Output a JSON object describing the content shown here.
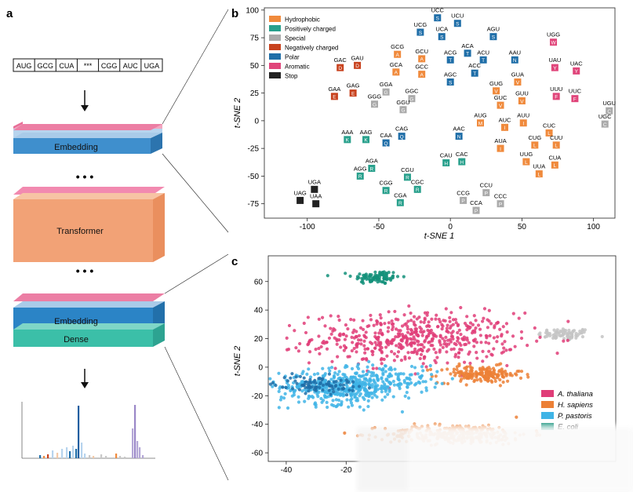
{
  "panel_labels": {
    "a": "a",
    "b": "b",
    "c": "c"
  },
  "architecture": {
    "sequence_tokens": [
      "AUG",
      "GCG",
      "CUA",
      "***",
      "CGG",
      "AUC",
      "UGA"
    ],
    "top_embedding_label": "Embedding",
    "dots": "• • •",
    "transformer_label": "Transformer",
    "bottom_embedding_label": "Embedding",
    "dense_label": "Dense"
  },
  "colors": {
    "Hydrophobic": "#f08a3c",
    "Positively charged": "#28a08c",
    "Special": "#aaaaaa",
    "Negatively charged": "#c8421e",
    "Polar": "#1f6ea8",
    "Aromatic": "#e0457a",
    "Stop": "#222222",
    "A. thaliana": "#e03d78",
    "H. sapiens": "#ec8036",
    "P. pastoris": "#3fb4e6",
    "E. coli": "#13907a"
  },
  "chart_data": [
    {
      "id": "b",
      "type": "scatter",
      "title": "",
      "xlabel": "t-SNE 1",
      "ylabel": "t-SNE 2",
      "xlim": [
        -130,
        115
      ],
      "ylim": [
        -88,
        102
      ],
      "xticks": [
        -100,
        -50,
        0,
        50,
        100
      ],
      "yticks": [
        -75,
        -50,
        -25,
        0,
        25,
        50,
        75,
        100
      ],
      "legend": [
        "Hydrophobic",
        "Positively charged",
        "Special",
        "Negatively charged",
        "Polar",
        "Aromatic",
        "Stop"
      ],
      "legend_position": "top-left",
      "points": [
        {
          "codon": "UCC",
          "aa": "S",
          "x": -9,
          "y": 93,
          "cls": "Polar"
        },
        {
          "codon": "UCU",
          "aa": "S",
          "x": 5,
          "y": 88,
          "cls": "Polar"
        },
        {
          "codon": "UCG",
          "aa": "S",
          "x": -21,
          "y": 80,
          "cls": "Polar"
        },
        {
          "codon": "UCA",
          "aa": "S",
          "x": -6,
          "y": 76,
          "cls": "Polar"
        },
        {
          "codon": "AGU",
          "aa": "S",
          "x": 30,
          "y": 76,
          "cls": "Polar"
        },
        {
          "codon": "UGG",
          "aa": "W",
          "x": 72,
          "y": 71,
          "cls": "Aromatic"
        },
        {
          "codon": "GCG",
          "aa": "A",
          "x": -37,
          "y": 60,
          "cls": "Hydrophobic"
        },
        {
          "codon": "GCU",
          "aa": "A",
          "x": -20,
          "y": 56,
          "cls": "Hydrophobic"
        },
        {
          "codon": "ACA",
          "aa": "T",
          "x": 12,
          "y": 61,
          "cls": "Polar"
        },
        {
          "codon": "ACG",
          "aa": "T",
          "x": 0,
          "y": 55,
          "cls": "Polar"
        },
        {
          "codon": "ACU",
          "aa": "T",
          "x": 23,
          "y": 55,
          "cls": "Polar"
        },
        {
          "codon": "AAU",
          "aa": "N",
          "x": 45,
          "y": 55,
          "cls": "Polar"
        },
        {
          "codon": "UAU",
          "aa": "Y",
          "x": 73,
          "y": 48,
          "cls": "Aromatic"
        },
        {
          "codon": "UAC",
          "aa": "Y",
          "x": 88,
          "y": 45,
          "cls": "Aromatic"
        },
        {
          "codon": "GAC",
          "aa": "D",
          "x": -77,
          "y": 48,
          "cls": "Negatively charged"
        },
        {
          "codon": "GAU",
          "aa": "D",
          "x": -65,
          "y": 50,
          "cls": "Negatively charged"
        },
        {
          "codon": "GCA",
          "aa": "A",
          "x": -38,
          "y": 44,
          "cls": "Hydrophobic"
        },
        {
          "codon": "GCC",
          "aa": "A",
          "x": -20,
          "y": 42,
          "cls": "Hydrophobic"
        },
        {
          "codon": "ACC",
          "aa": "T",
          "x": 17,
          "y": 43,
          "cls": "Polar"
        },
        {
          "codon": "AGC",
          "aa": "S",
          "x": 0,
          "y": 35,
          "cls": "Polar"
        },
        {
          "codon": "GUA",
          "aa": "V",
          "x": 47,
          "y": 35,
          "cls": "Hydrophobic"
        },
        {
          "codon": "GUG",
          "aa": "V",
          "x": 32,
          "y": 27,
          "cls": "Hydrophobic"
        },
        {
          "codon": "UUU",
          "aa": "F",
          "x": 74,
          "y": 22,
          "cls": "Aromatic"
        },
        {
          "codon": "UUC",
          "aa": "F",
          "x": 87,
          "y": 20,
          "cls": "Aromatic"
        },
        {
          "codon": "GAG",
          "aa": "E",
          "x": -68,
          "y": 25,
          "cls": "Negatively charged"
        },
        {
          "codon": "GAA",
          "aa": "E",
          "x": -81,
          "y": 22,
          "cls": "Negatively charged"
        },
        {
          "codon": "GGA",
          "aa": "G",
          "x": -45,
          "y": 26,
          "cls": "Special"
        },
        {
          "codon": "GGC",
          "aa": "G",
          "x": -27,
          "y": 20,
          "cls": "Special"
        },
        {
          "codon": "GGG",
          "aa": "G",
          "x": -53,
          "y": 15,
          "cls": "Special"
        },
        {
          "codon": "GGU",
          "aa": "G",
          "x": -33,
          "y": 10,
          "cls": "Special"
        },
        {
          "codon": "GUU",
          "aa": "V",
          "x": 50,
          "y": 18,
          "cls": "Hydrophobic"
        },
        {
          "codon": "GUC",
          "aa": "V",
          "x": 35,
          "y": 14,
          "cls": "Hydrophobic"
        },
        {
          "codon": "UGU",
          "aa": "C",
          "x": 111,
          "y": 9,
          "cls": "Special"
        },
        {
          "codon": "UGC",
          "aa": "C",
          "x": 108,
          "y": -3,
          "cls": "Special"
        },
        {
          "codon": "AUG",
          "aa": "M",
          "x": 21,
          "y": -2,
          "cls": "Hydrophobic"
        },
        {
          "codon": "AUU",
          "aa": "I",
          "x": 51,
          "y": -2,
          "cls": "Hydrophobic"
        },
        {
          "codon": "AUC",
          "aa": "I",
          "x": 38,
          "y": -6,
          "cls": "Hydrophobic"
        },
        {
          "codon": "CUC",
          "aa": "L",
          "x": 69,
          "y": -11,
          "cls": "Hydrophobic"
        },
        {
          "codon": "AAC",
          "aa": "N",
          "x": 6,
          "y": -14,
          "cls": "Polar"
        },
        {
          "codon": "CAG",
          "aa": "Q",
          "x": -34,
          "y": -14,
          "cls": "Polar"
        },
        {
          "codon": "CAA",
          "aa": "Q",
          "x": -45,
          "y": -20,
          "cls": "Polar"
        },
        {
          "codon": "AAA",
          "aa": "K",
          "x": -72,
          "y": -17,
          "cls": "Positively charged"
        },
        {
          "codon": "AAG",
          "aa": "K",
          "x": -59,
          "y": -17,
          "cls": "Positively charged"
        },
        {
          "codon": "CUG",
          "aa": "L",
          "x": 59,
          "y": -22,
          "cls": "Hydrophobic"
        },
        {
          "codon": "CUU",
          "aa": "L",
          "x": 74,
          "y": -22,
          "cls": "Hydrophobic"
        },
        {
          "codon": "AUA",
          "aa": "I",
          "x": 35,
          "y": -25,
          "cls": "Hydrophobic"
        },
        {
          "codon": "UUG",
          "aa": "L",
          "x": 53,
          "y": -37,
          "cls": "Hydrophobic"
        },
        {
          "codon": "CUA",
          "aa": "L",
          "x": 73,
          "y": -40,
          "cls": "Hydrophobic"
        },
        {
          "codon": "UUA",
          "aa": "L",
          "x": 62,
          "y": -48,
          "cls": "Hydrophobic"
        },
        {
          "codon": "CAU",
          "aa": "H",
          "x": -3,
          "y": -38,
          "cls": "Positively charged"
        },
        {
          "codon": "CAC",
          "aa": "H",
          "x": 8,
          "y": -37,
          "cls": "Positively charged"
        },
        {
          "codon": "AGA",
          "aa": "R",
          "x": -55,
          "y": -43,
          "cls": "Positively charged"
        },
        {
          "codon": "AGG",
          "aa": "R",
          "x": -63,
          "y": -50,
          "cls": "Positively charged"
        },
        {
          "codon": "CGU",
          "aa": "R",
          "x": -30,
          "y": -51,
          "cls": "Positively charged"
        },
        {
          "codon": "CGG",
          "aa": "R",
          "x": -45,
          "y": -63,
          "cls": "Positively charged"
        },
        {
          "codon": "CGC",
          "aa": "R",
          "x": -23,
          "y": -62,
          "cls": "Positively charged"
        },
        {
          "codon": "CGA",
          "aa": "R",
          "x": -35,
          "y": -74,
          "cls": "Positively charged"
        },
        {
          "codon": "CCU",
          "aa": "P",
          "x": 25,
          "y": -65,
          "cls": "Special"
        },
        {
          "codon": "CCG",
          "aa": "P",
          "x": 9,
          "y": -72,
          "cls": "Special"
        },
        {
          "codon": "CCC",
          "aa": "P",
          "x": 35,
          "y": -75,
          "cls": "Special"
        },
        {
          "codon": "CCA",
          "aa": "P",
          "x": 18,
          "y": -81,
          "cls": "Special"
        },
        {
          "codon": "UGA",
          "aa": "",
          "x": -95,
          "y": -62,
          "cls": "Stop"
        },
        {
          "codon": "UAG",
          "aa": "",
          "x": -105,
          "y": -72,
          "cls": "Stop"
        },
        {
          "codon": "UAA",
          "aa": "",
          "x": -94,
          "y": -75,
          "cls": "Stop"
        }
      ]
    },
    {
      "id": "c",
      "type": "scatter",
      "title": "",
      "xlabel": "",
      "ylabel": "t-SNE 2",
      "xlim": [
        -46,
        70
      ],
      "ylim": [
        -66,
        78
      ],
      "xticks": [
        -40,
        -20
      ],
      "yticks": [
        -60,
        -40,
        -20,
        0,
        20,
        40,
        60
      ],
      "legend": [
        "A. thaliana",
        "H. sapiens",
        "P. pastoris",
        "E. coli"
      ],
      "legend_position": "bottom-right",
      "clusters": [
        {
          "name": "E. coli",
          "cx": -10,
          "cy": 63,
          "sx": 4,
          "sy": 2.4,
          "n": 90
        },
        {
          "name": "A. thaliana",
          "cx": 3,
          "cy": 20,
          "sx": 17,
          "sy": 9,
          "n": 520
        },
        {
          "name": "H. sapiens",
          "cx": 25,
          "cy": -5,
          "sx": 7,
          "sy": 3,
          "n": 170
        },
        {
          "name": "H. sapiens",
          "cx": 17,
          "cy": -47,
          "sx": 12,
          "sy": 3.5,
          "n": 300
        },
        {
          "name": "P. pastoris",
          "cx": -22,
          "cy": -14,
          "sx": 10,
          "sy": 6,
          "n": 420
        },
        {
          "name": "P. pastoris",
          "cx": -5,
          "cy": -8,
          "sx": 8,
          "sy": 5,
          "n": 110
        }
      ],
      "gray_cluster": {
        "cx": 53,
        "cy": 23,
        "sx": 4.5,
        "sy": 2.2,
        "n": 80
      }
    }
  ]
}
